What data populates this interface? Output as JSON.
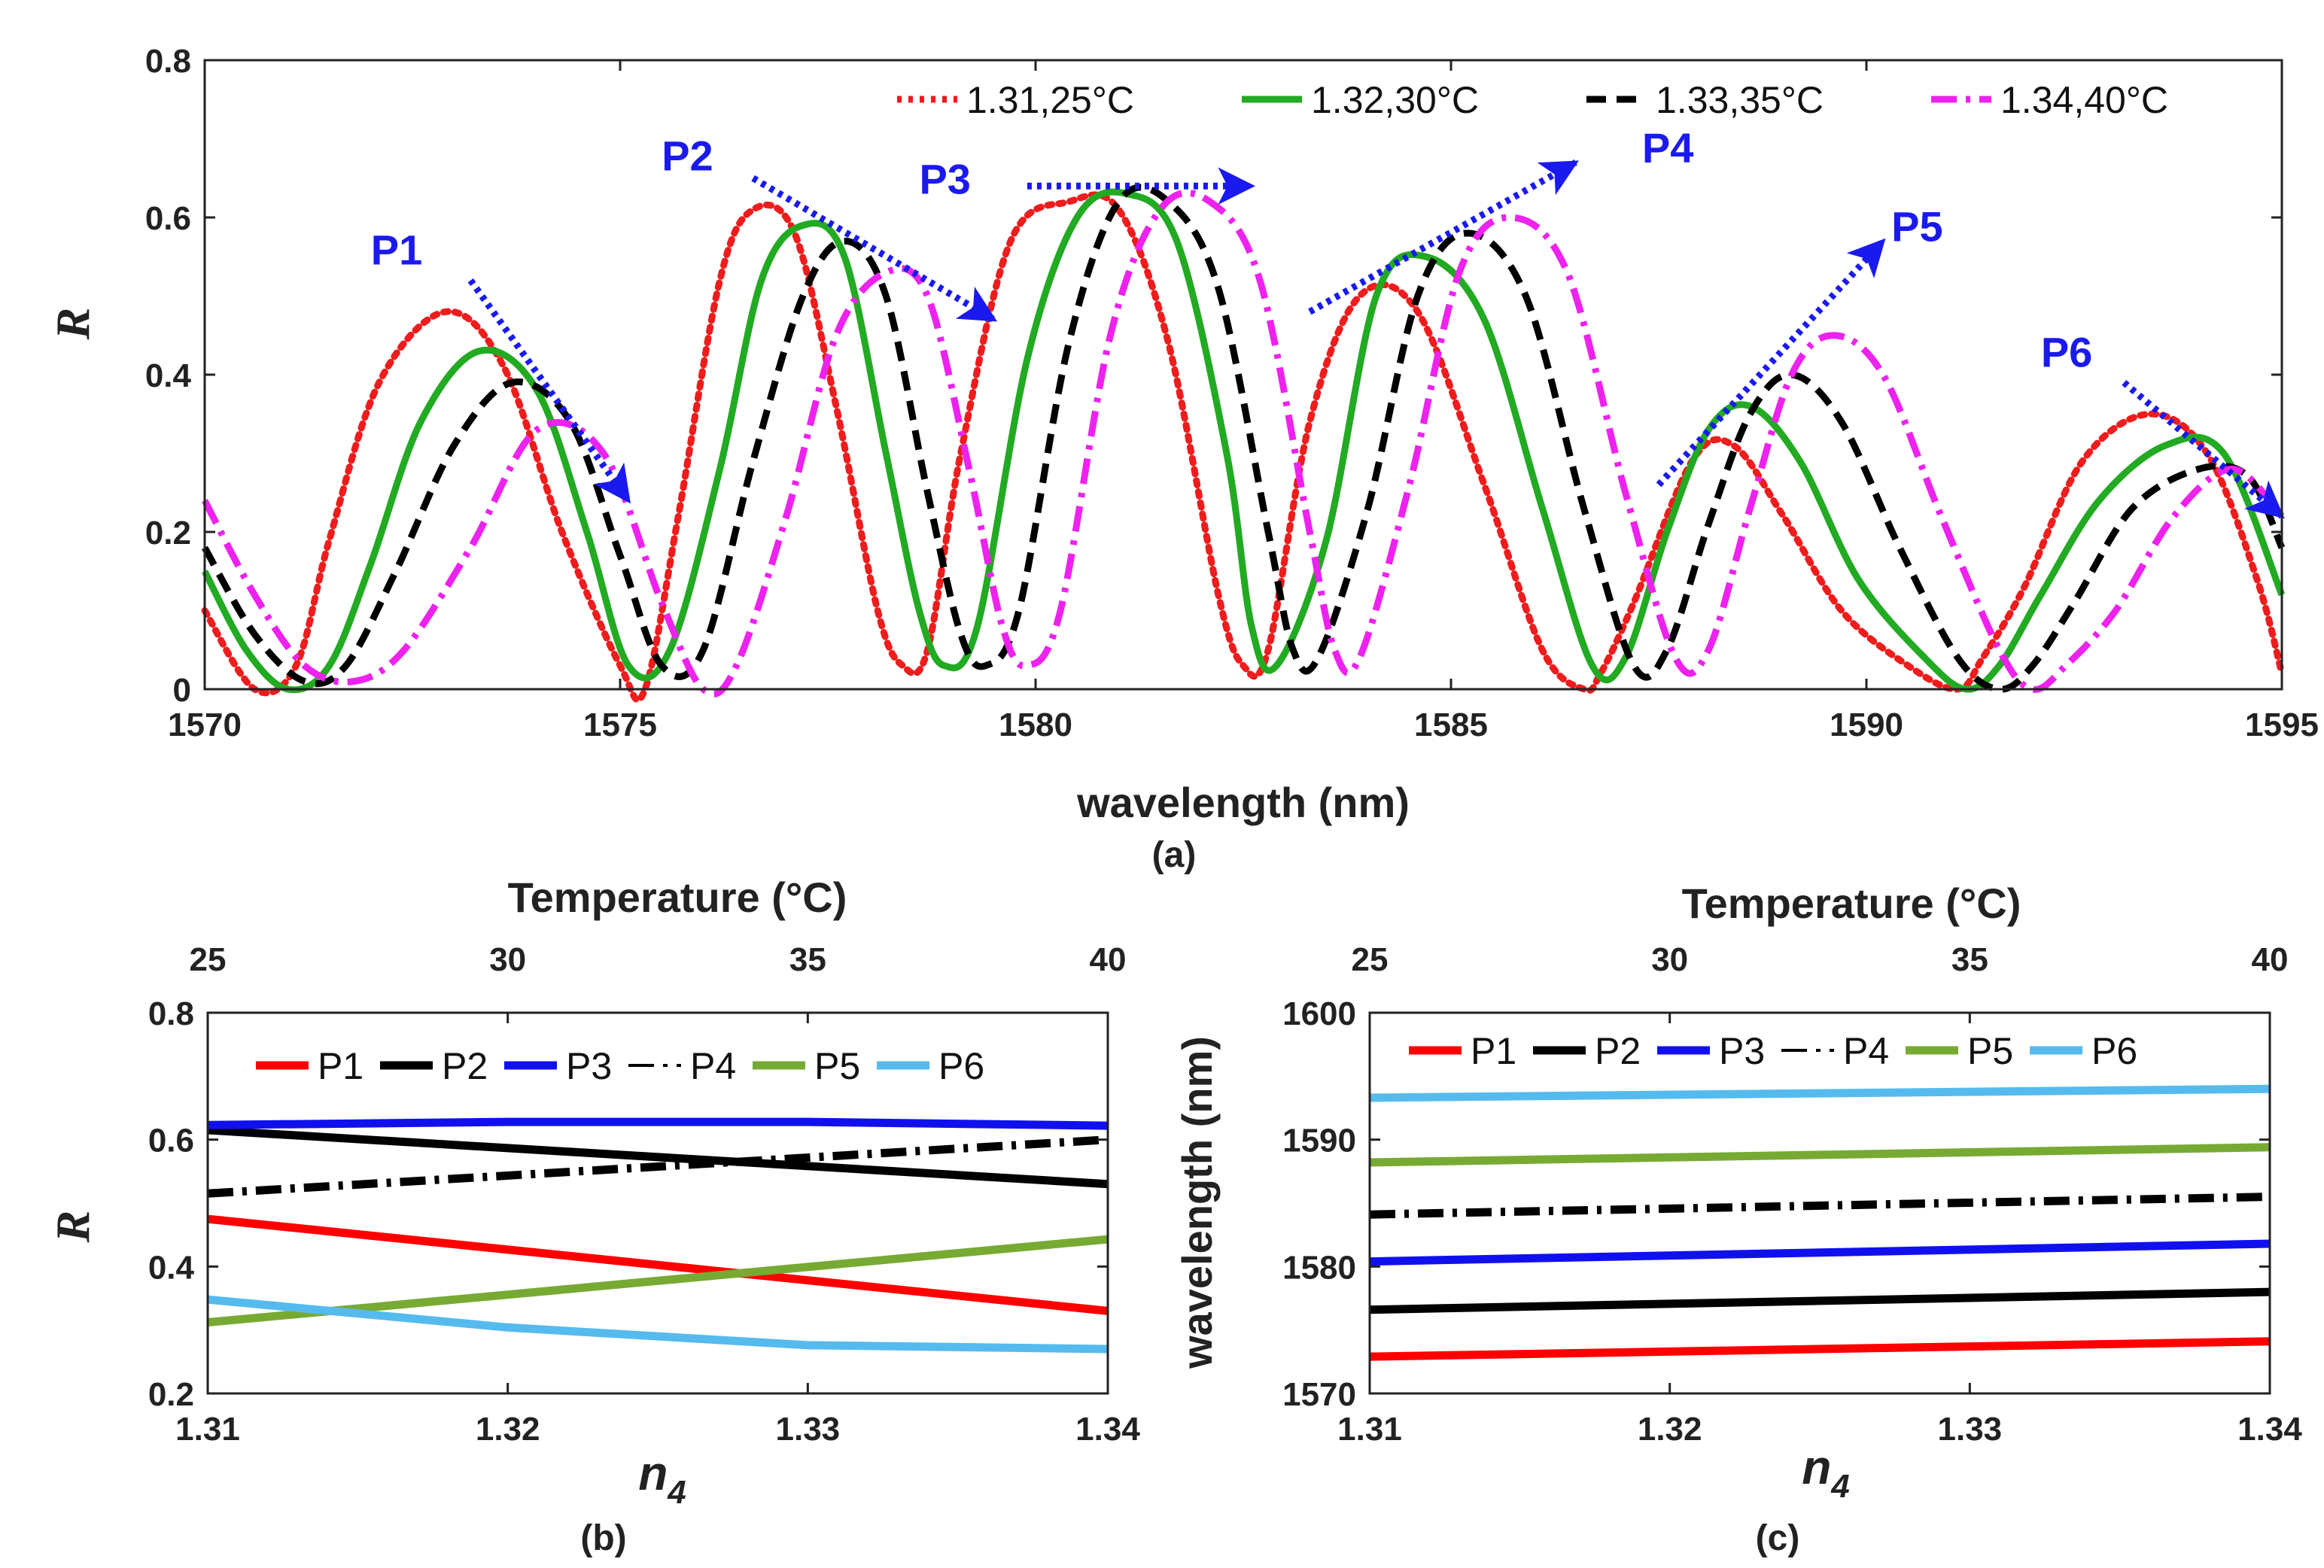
{
  "colors": {
    "red": "#ee1c1c",
    "green": "#22aa22",
    "black": "#000000",
    "magenta": "#ee22ee",
    "p1": "#ff0000",
    "p2": "#000000",
    "p3": "#1010ee",
    "p4": "#000000",
    "p5": "#77aa33",
    "p6": "#55bbee",
    "arrow": "#1a1aee"
  },
  "chart_data": [
    {
      "type": "line",
      "caption": "(a)",
      "xlabel": "wavelength (nm)",
      "ylabel": "R",
      "xlim": [
        1570,
        1595
      ],
      "ylim": [
        0,
        0.8
      ],
      "xticks": [
        "1570",
        "1575",
        "1580",
        "1585",
        "1590",
        "1595"
      ],
      "yticks": [
        "0",
        "0.2",
        "0.4",
        "0.6",
        "0.8"
      ],
      "legend_position": "top",
      "series": [
        {
          "name": "1.31,25°C",
          "color": "#ee1c1c",
          "style": "dotted",
          "x": [
            1570.0,
            1570.6,
            1571.1,
            1571.5,
            1572.1,
            1572.9,
            1573.6,
            1574.3,
            1575.0,
            1575.3,
            1575.7,
            1576.2,
            1576.6,
            1577.1,
            1577.6,
            1578.1,
            1578.4,
            1578.7,
            1579.1,
            1579.7,
            1580.4,
            1581.0,
            1581.6,
            1582.2,
            1582.5,
            1582.8,
            1583.3,
            1583.9,
            1584.6,
            1585.4,
            1586.1,
            1586.6,
            1586.8,
            1587.2,
            1587.9,
            1588.4,
            1589.0,
            1589.7,
            1590.5,
            1591.1,
            1591.4,
            1591.9,
            1592.6,
            1593.4,
            1594.1,
            1594.7,
            1595.0
          ],
          "y": [
            0.1,
            0.0,
            0.03,
            0.19,
            0.39,
            0.48,
            0.41,
            0.2,
            0.03,
            0.0,
            0.22,
            0.52,
            0.61,
            0.58,
            0.36,
            0.1,
            0.03,
            0.05,
            0.3,
            0.57,
            0.62,
            0.61,
            0.44,
            0.12,
            0.03,
            0.05,
            0.34,
            0.5,
            0.48,
            0.26,
            0.05,
            0.0,
            0.02,
            0.11,
            0.29,
            0.31,
            0.22,
            0.1,
            0.03,
            0.0,
            0.04,
            0.13,
            0.29,
            0.35,
            0.3,
            0.14,
            0.02
          ]
        },
        {
          "name": "1.32,30°C",
          "color": "#22aa22",
          "style": "solid",
          "x": [
            1570.0,
            1570.5,
            1571.0,
            1571.5,
            1572.0,
            1572.6,
            1573.3,
            1574.0,
            1574.6,
            1575.1,
            1575.6,
            1576.2,
            1576.7,
            1577.2,
            1577.7,
            1578.2,
            1578.6,
            1578.9,
            1579.3,
            1579.9,
            1580.5,
            1581.1,
            1581.7,
            1582.3,
            1582.6,
            1582.9,
            1583.5,
            1584.1,
            1584.7,
            1585.4,
            1586.1,
            1586.7,
            1587.1,
            1587.6,
            1588.1,
            1588.6,
            1589.2,
            1589.9,
            1590.7,
            1591.2,
            1591.6,
            1592.1,
            1592.8,
            1593.6,
            1594.3,
            1595.0
          ],
          "y": [
            0.15,
            0.05,
            0.0,
            0.03,
            0.16,
            0.34,
            0.43,
            0.38,
            0.2,
            0.03,
            0.05,
            0.28,
            0.52,
            0.59,
            0.55,
            0.3,
            0.1,
            0.03,
            0.08,
            0.42,
            0.6,
            0.63,
            0.57,
            0.3,
            0.08,
            0.03,
            0.19,
            0.5,
            0.55,
            0.47,
            0.23,
            0.03,
            0.04,
            0.2,
            0.33,
            0.36,
            0.29,
            0.14,
            0.04,
            0.0,
            0.03,
            0.12,
            0.24,
            0.31,
            0.3,
            0.12
          ]
        },
        {
          "name": "1.33,35°C",
          "color": "#000000",
          "style": "dashed",
          "x": [
            1570.0,
            1570.6,
            1571.2,
            1571.7,
            1572.3,
            1573.0,
            1573.7,
            1574.4,
            1575.0,
            1575.5,
            1576.0,
            1576.6,
            1577.2,
            1577.7,
            1578.2,
            1578.7,
            1579.1,
            1579.4,
            1579.8,
            1580.4,
            1581.0,
            1581.6,
            1582.2,
            1582.8,
            1583.1,
            1583.4,
            1584.0,
            1584.6,
            1585.2,
            1585.9,
            1586.6,
            1587.2,
            1587.6,
            1588.1,
            1588.6,
            1589.1,
            1589.7,
            1590.4,
            1591.1,
            1591.6,
            1592.0,
            1592.5,
            1593.2,
            1594.0,
            1594.6,
            1595.0
          ],
          "y": [
            0.18,
            0.07,
            0.01,
            0.03,
            0.15,
            0.31,
            0.39,
            0.34,
            0.17,
            0.03,
            0.05,
            0.29,
            0.5,
            0.57,
            0.5,
            0.25,
            0.07,
            0.03,
            0.1,
            0.44,
            0.62,
            0.62,
            0.51,
            0.2,
            0.05,
            0.04,
            0.23,
            0.5,
            0.58,
            0.5,
            0.23,
            0.03,
            0.05,
            0.21,
            0.35,
            0.4,
            0.34,
            0.18,
            0.04,
            0.0,
            0.03,
            0.11,
            0.23,
            0.28,
            0.27,
            0.18
          ]
        },
        {
          "name": "1.34,40°C",
          "color": "#ee22ee",
          "style": "dashdot",
          "x": [
            1570.0,
            1570.6,
            1571.2,
            1571.8,
            1572.4,
            1573.2,
            1574.0,
            1574.8,
            1575.5,
            1576.0,
            1576.4,
            1577.0,
            1577.6,
            1578.2,
            1578.7,
            1579.2,
            1579.6,
            1579.9,
            1580.3,
            1580.9,
            1581.5,
            1582.1,
            1582.7,
            1583.3,
            1583.6,
            1583.9,
            1584.5,
            1585.1,
            1585.7,
            1586.4,
            1587.1,
            1587.7,
            1588.1,
            1588.6,
            1589.1,
            1589.6,
            1590.2,
            1590.9,
            1591.6,
            1592.0,
            1592.4,
            1593.0,
            1593.7,
            1594.4,
            1595.0
          ],
          "y": [
            0.24,
            0.12,
            0.03,
            0.01,
            0.05,
            0.18,
            0.33,
            0.3,
            0.11,
            0.0,
            0.03,
            0.22,
            0.45,
            0.53,
            0.5,
            0.28,
            0.08,
            0.03,
            0.1,
            0.45,
            0.61,
            0.62,
            0.52,
            0.2,
            0.05,
            0.04,
            0.26,
            0.53,
            0.6,
            0.53,
            0.25,
            0.04,
            0.05,
            0.23,
            0.4,
            0.45,
            0.4,
            0.22,
            0.05,
            0.0,
            0.03,
            0.1,
            0.22,
            0.28,
            0.22
          ]
        }
      ],
      "annotations": [
        {
          "text": "P1",
          "x": 1573.1,
          "y": 0.55,
          "arrow_from": [
            1573.2,
            0.52
          ],
          "arrow_to": [
            1575.1,
            0.24
          ],
          "label_x": 1572.0,
          "label_y": 0.54
        },
        {
          "text": "P2",
          "x": 1576.0,
          "y": 0.66,
          "arrow_from": [
            1576.6,
            0.65
          ],
          "arrow_to": [
            1579.5,
            0.47
          ],
          "label_x": 1575.5,
          "label_y": 0.66
        },
        {
          "text": "P3",
          "x": 1579.4,
          "y": 0.63,
          "arrow_from": [
            1579.9,
            0.64
          ],
          "arrow_to": [
            1582.6,
            0.64
          ],
          "label_x": 1578.6,
          "label_y": 0.63
        },
        {
          "text": "P4",
          "x": 1587.6,
          "y": 0.67,
          "arrow_from": [
            1583.3,
            0.48
          ],
          "arrow_to": [
            1586.5,
            0.67
          ],
          "label_x": 1587.3,
          "label_y": 0.67
        },
        {
          "text": "P5",
          "x": 1590.5,
          "y": 0.57,
          "arrow_from": [
            1587.5,
            0.26
          ],
          "arrow_to": [
            1590.2,
            0.57
          ],
          "label_x": 1590.3,
          "label_y": 0.57
        },
        {
          "text": "P6",
          "x": 1592.7,
          "y": 0.4,
          "arrow_from": [
            1593.1,
            0.39
          ],
          "arrow_to": [
            1595.0,
            0.22
          ],
          "label_x": 1592.1,
          "label_y": 0.41
        }
      ]
    },
    {
      "type": "line",
      "caption": "(b)",
      "xlabel": "n",
      "xlabel_sub": "4",
      "ylabel": "R",
      "toplabel": "Temperature (°C)",
      "xlim": [
        1.31,
        1.34
      ],
      "ylim": [
        0.2,
        0.8
      ],
      "xticks": [
        "1.31",
        "1.32",
        "1.33",
        "1.34"
      ],
      "yticks": [
        "0.2",
        "0.4",
        "0.6",
        "0.8"
      ],
      "topticks": [
        "25",
        "30",
        "35",
        "40"
      ],
      "legend_position": "top",
      "series": [
        {
          "name": "P1",
          "color": "#ff0000",
          "style": "solid",
          "x": [
            1.31,
            1.34
          ],
          "y": [
            0.475,
            0.33
          ]
        },
        {
          "name": "P2",
          "color": "#000000",
          "style": "solid",
          "x": [
            1.31,
            1.34
          ],
          "y": [
            0.615,
            0.53
          ]
        },
        {
          "name": "P3",
          "color": "#1010ee",
          "style": "solid",
          "x": [
            1.31,
            1.32,
            1.33,
            1.34
          ],
          "y": [
            0.623,
            0.628,
            0.628,
            0.622
          ]
        },
        {
          "name": "P4",
          "color": "#000000",
          "style": "dashdot",
          "x": [
            1.31,
            1.34
          ],
          "y": [
            0.515,
            0.6
          ]
        },
        {
          "name": "P5",
          "color": "#77aa33",
          "style": "solid",
          "x": [
            1.31,
            1.34
          ],
          "y": [
            0.312,
            0.443
          ]
        },
        {
          "name": "P6",
          "color": "#55bbee",
          "style": "solid",
          "x": [
            1.31,
            1.32,
            1.33,
            1.34
          ],
          "y": [
            0.348,
            0.304,
            0.276,
            0.27
          ]
        }
      ]
    },
    {
      "type": "line",
      "caption": "(c)",
      "xlabel": "n",
      "xlabel_sub": "4",
      "ylabel": "wavelength (nm)",
      "toplabel": "Temperature (°C)",
      "xlim": [
        1.31,
        1.34
      ],
      "ylim": [
        1570,
        1600
      ],
      "xticks": [
        "1.31",
        "1.32",
        "1.33",
        "1.34"
      ],
      "yticks": [
        "1570",
        "1580",
        "1590",
        "1600"
      ],
      "topticks": [
        "25",
        "30",
        "35",
        "40"
      ],
      "legend_position": "top",
      "series": [
        {
          "name": "P1",
          "color": "#ff0000",
          "style": "solid",
          "x": [
            1.31,
            1.34
          ],
          "y": [
            1572.9,
            1574.1
          ]
        },
        {
          "name": "P2",
          "color": "#000000",
          "style": "solid",
          "x": [
            1.31,
            1.34
          ],
          "y": [
            1576.6,
            1578.0
          ]
        },
        {
          "name": "P3",
          "color": "#1010ee",
          "style": "solid",
          "x": [
            1.31,
            1.34
          ],
          "y": [
            1580.4,
            1581.8
          ]
        },
        {
          "name": "P4",
          "color": "#000000",
          "style": "dashdot",
          "x": [
            1.31,
            1.34
          ],
          "y": [
            1584.1,
            1585.5
          ]
        },
        {
          "name": "P5",
          "color": "#77aa33",
          "style": "solid",
          "x": [
            1.31,
            1.34
          ],
          "y": [
            1588.2,
            1589.4
          ]
        },
        {
          "name": "P6",
          "color": "#55bbee",
          "style": "solid",
          "x": [
            1.31,
            1.34
          ],
          "y": [
            1593.3,
            1594.0
          ]
        }
      ]
    }
  ]
}
